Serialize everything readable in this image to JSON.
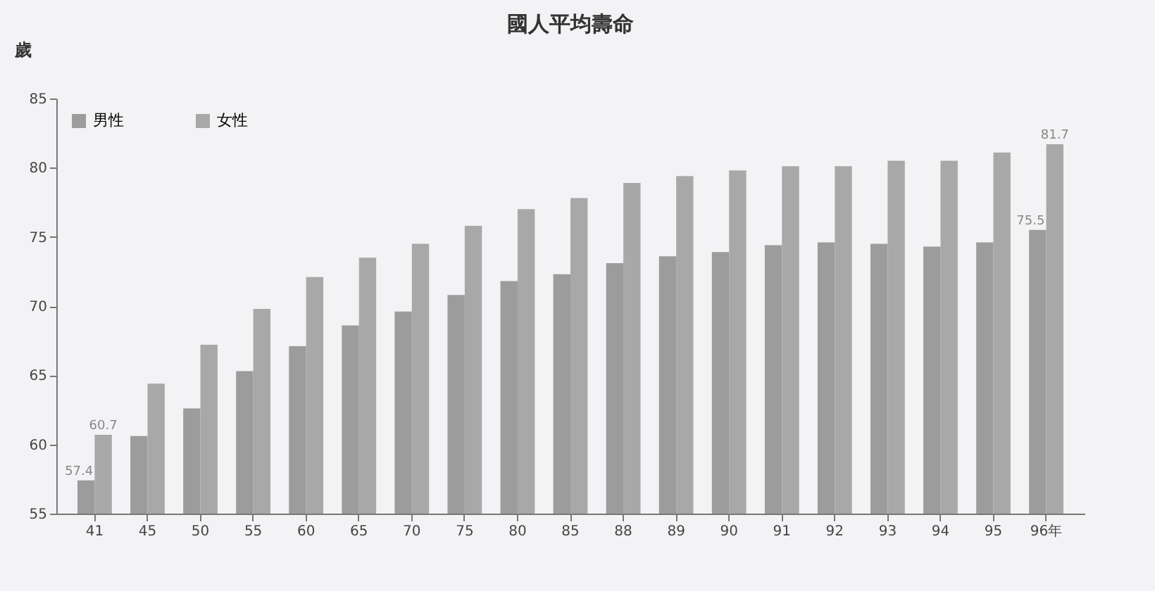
{
  "chart_data": {
    "type": "bar",
    "title": "國人平均壽命",
    "ylabel": "歲",
    "categories": [
      "41",
      "45",
      "50",
      "55",
      "60",
      "65",
      "70",
      "75",
      "80",
      "85",
      "88",
      "89",
      "90",
      "91",
      "92",
      "93",
      "94",
      "95",
      "96年"
    ],
    "series": [
      {
        "name": "男性",
        "color": "#9c9c9c",
        "values": [
          57.4,
          60.6,
          62.6,
          65.3,
          67.1,
          68.6,
          69.6,
          70.8,
          71.8,
          72.3,
          73.1,
          73.6,
          73.9,
          74.4,
          74.6,
          74.5,
          74.3,
          74.6,
          75.5
        ],
        "value_labels": [
          "57.4",
          null,
          null,
          null,
          null,
          null,
          null,
          null,
          null,
          null,
          null,
          null,
          null,
          null,
          null,
          null,
          null,
          null,
          "75.5"
        ]
      },
      {
        "name": "女性",
        "color": "#a8a8a8",
        "values": [
          60.7,
          64.4,
          67.2,
          69.8,
          72.1,
          73.5,
          74.5,
          75.8,
          77.0,
          77.8,
          78.9,
          79.4,
          79.8,
          80.1,
          80.1,
          80.5,
          80.5,
          81.1,
          81.7
        ],
        "value_labels": [
          "60.7",
          null,
          null,
          null,
          null,
          null,
          null,
          null,
          null,
          null,
          null,
          null,
          null,
          null,
          null,
          null,
          null,
          null,
          "81.7"
        ]
      }
    ],
    "ylim": [
      55,
      85
    ],
    "yticks": [
      55,
      60,
      65,
      70,
      75,
      80,
      85
    ],
    "grid": false,
    "legend": "top left"
  }
}
